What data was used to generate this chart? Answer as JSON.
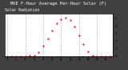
{
  "title": "MKE F-Hour Average Per-Hour Solar (F)",
  "subtitle": "Solar Radiation",
  "hours": [
    0,
    1,
    2,
    3,
    4,
    5,
    6,
    7,
    8,
    9,
    10,
    11,
    12,
    13,
    14,
    15,
    16,
    17,
    18,
    19,
    20,
    21,
    22,
    23
  ],
  "solar": [
    0,
    0,
    0,
    0,
    0,
    2,
    8,
    45,
    130,
    230,
    340,
    440,
    490,
    510,
    475,
    390,
    275,
    160,
    60,
    8,
    0,
    0,
    0,
    0
  ],
  "line_color": "#ff0000",
  "bg_color": "#ffffff",
  "outer_bg": "#404040",
  "grid_color": "#888888",
  "ylim": [
    0,
    560
  ],
  "xlim": [
    -0.5,
    23.5
  ],
  "ytick_labels": [
    "0",
    "1",
    "2",
    "3",
    "4",
    "5"
  ],
  "ytick_values": [
    0,
    100,
    200,
    300,
    400,
    500
  ],
  "title_fontsize": 4.0,
  "tick_fontsize": 3.0,
  "marker_size": 1.2,
  "line_width": 0.0
}
